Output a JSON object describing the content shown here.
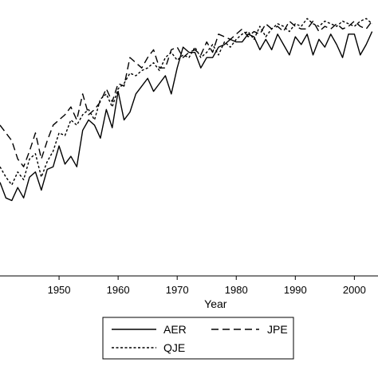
{
  "chart_data": {
    "type": "line",
    "xlabel": "Year",
    "ylabel": "",
    "xlim": [
      1940,
      2004
    ],
    "ylim": [
      0,
      1
    ],
    "x_ticks": [
      1950,
      1960,
      1970,
      1980,
      1990,
      2000
    ],
    "x_tick_labels": [
      "1950",
      "1960",
      "1970",
      "1980",
      "1990",
      "2000"
    ],
    "legend_placement": "bottom",
    "x": [
      1940,
      1941,
      1942,
      1943,
      1944,
      1945,
      1946,
      1947,
      1948,
      1949,
      1950,
      1951,
      1952,
      1953,
      1954,
      1955,
      1956,
      1957,
      1958,
      1959,
      1960,
      1961,
      1962,
      1963,
      1964,
      1965,
      1966,
      1967,
      1968,
      1969,
      1970,
      1971,
      1972,
      1973,
      1974,
      1975,
      1976,
      1977,
      1978,
      1979,
      1980,
      1981,
      1982,
      1983,
      1984,
      1985,
      1986,
      1987,
      1988,
      1989,
      1990,
      1991,
      1992,
      1993,
      1994,
      1995,
      1996,
      1997,
      1998,
      1999,
      2000,
      2001,
      2002,
      2003
    ],
    "series": [
      {
        "name": "AER",
        "style": "solid",
        "color": "#000000",
        "values": [
          0.36,
          0.3,
          0.29,
          0.34,
          0.3,
          0.38,
          0.4,
          0.33,
          0.41,
          0.42,
          0.5,
          0.43,
          0.46,
          0.42,
          0.56,
          0.6,
          0.58,
          0.53,
          0.64,
          0.57,
          0.71,
          0.6,
          0.63,
          0.7,
          0.73,
          0.76,
          0.71,
          0.74,
          0.77,
          0.7,
          0.8,
          0.88,
          0.86,
          0.86,
          0.8,
          0.84,
          0.84,
          0.88,
          0.89,
          0.91,
          0.9,
          0.9,
          0.93,
          0.92,
          0.87,
          0.91,
          0.87,
          0.93,
          0.89,
          0.85,
          0.92,
          0.89,
          0.93,
          0.85,
          0.91,
          0.88,
          0.93,
          0.89,
          0.84,
          0.93,
          0.93,
          0.85,
          0.89,
          0.94
        ]
      },
      {
        "name": "JPE",
        "style": "dashed",
        "color": "#000000",
        "values": [
          0.58,
          0.55,
          0.52,
          0.45,
          0.42,
          0.48,
          0.55,
          0.45,
          0.52,
          0.58,
          0.6,
          0.62,
          0.65,
          0.6,
          0.7,
          0.62,
          0.64,
          0.67,
          0.72,
          0.67,
          0.74,
          0.73,
          0.84,
          0.82,
          0.8,
          0.84,
          0.87,
          0.8,
          0.8,
          0.87,
          0.88,
          0.84,
          0.86,
          0.87,
          0.85,
          0.9,
          0.86,
          0.93,
          0.92,
          0.91,
          0.93,
          0.95,
          0.92,
          0.94,
          0.93,
          0.97,
          0.95,
          0.96,
          0.94,
          0.98,
          0.96,
          0.95,
          0.95,
          0.98,
          0.94,
          0.96,
          0.95,
          0.97,
          0.95,
          0.96,
          0.98,
          0.96,
          0.95,
          0.98
        ]
      },
      {
        "name": "QJE",
        "style": "dotted",
        "color": "#000000",
        "values": [
          0.42,
          0.38,
          0.35,
          0.4,
          0.37,
          0.45,
          0.47,
          0.38,
          0.44,
          0.48,
          0.55,
          0.54,
          0.6,
          0.58,
          0.62,
          0.64,
          0.6,
          0.68,
          0.7,
          0.65,
          0.72,
          0.74,
          0.78,
          0.77,
          0.79,
          0.8,
          0.82,
          0.79,
          0.84,
          0.86,
          0.83,
          0.85,
          0.84,
          0.88,
          0.84,
          0.86,
          0.89,
          0.85,
          0.9,
          0.88,
          0.91,
          0.93,
          0.94,
          0.91,
          0.96,
          0.92,
          0.95,
          0.97,
          0.96,
          0.94,
          0.97,
          0.96,
          0.99,
          0.97,
          0.96,
          0.98,
          0.97,
          0.96,
          0.98,
          0.97,
          0.96,
          0.98,
          0.99,
          0.97
        ]
      }
    ]
  }
}
